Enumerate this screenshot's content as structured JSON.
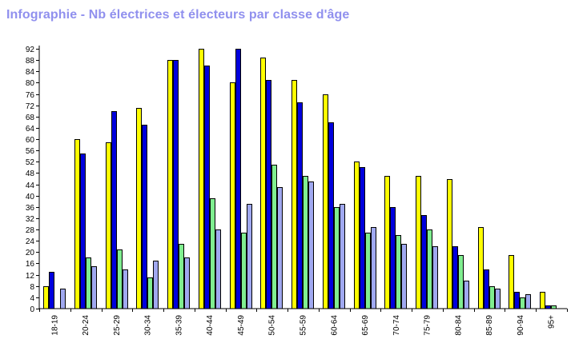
{
  "title": "Infographie - Nb électrices et électeurs par classe d'âge",
  "colors": {
    "axis": "#000000",
    "title": "#9090ee",
    "series": [
      "#ffff00",
      "#0000dd",
      "#80ee90",
      "#a0a8f0"
    ]
  },
  "chart_data": {
    "type": "bar",
    "title": "Infographie - Nb électrices et électeurs par classe d'âge",
    "xlabel": "",
    "ylabel": "",
    "ylim": [
      0,
      92
    ],
    "yticks": [
      0,
      4,
      8,
      12,
      16,
      20,
      24,
      28,
      32,
      36,
      40,
      44,
      48,
      52,
      56,
      60,
      64,
      68,
      72,
      76,
      80,
      84,
      88,
      92
    ],
    "grid": false,
    "legend": "none",
    "categories": [
      "18-19",
      "20-24",
      "25-29",
      "30-34",
      "35-39",
      "40-44",
      "45-49",
      "50-54",
      "55-59",
      "60-64",
      "65-69",
      "70-74",
      "75-79",
      "80-84",
      "85-89",
      "90-94",
      "95+"
    ],
    "series": [
      {
        "values": [
          8,
          60,
          59,
          71,
          88,
          92,
          80,
          89,
          81,
          76,
          52,
          47,
          47,
          46,
          29,
          19,
          6
        ]
      },
      {
        "values": [
          13,
          55,
          70,
          65,
          88,
          86,
          92,
          81,
          73,
          66,
          50,
          36,
          33,
          22,
          14,
          6,
          1
        ]
      },
      {
        "values": [
          0,
          18,
          21,
          11,
          23,
          39,
          27,
          51,
          47,
          36,
          27,
          26,
          28,
          19,
          8,
          4,
          1
        ]
      },
      {
        "values": [
          7,
          15,
          14,
          17,
          18,
          28,
          37,
          43,
          45,
          37,
          29,
          23,
          22,
          10,
          7,
          5,
          0
        ]
      }
    ]
  }
}
